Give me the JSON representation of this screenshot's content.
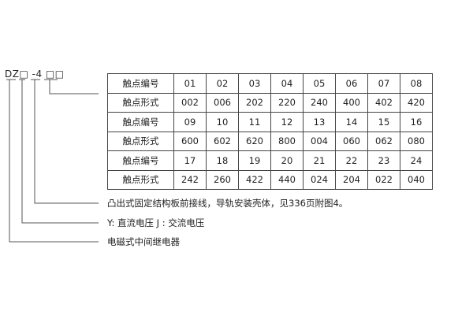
{
  "model_code": "DZ□ -4 □□",
  "table": {
    "rows": [
      {
        "label": "触点编号",
        "values": [
          "01",
          "02",
          "03",
          "04",
          "05",
          "06",
          "07",
          "08"
        ]
      },
      {
        "label": "触点形式",
        "values": [
          "002",
          "006",
          "202",
          "220",
          "240",
          "400",
          "402",
          "420"
        ]
      },
      {
        "label": "触点编号",
        "values": [
          "09",
          "10",
          "11",
          "12",
          "13",
          "14",
          "15",
          "16"
        ]
      },
      {
        "label": "触点形式",
        "values": [
          "600",
          "602",
          "620",
          "800",
          "004",
          "060",
          "062",
          "080"
        ]
      },
      {
        "label": "触点编号",
        "values": [
          "17",
          "18",
          "19",
          "20",
          "21",
          "22",
          "23",
          "24"
        ]
      },
      {
        "label": "触点形式",
        "values": [
          "242",
          "260",
          "422",
          "440",
          "024",
          "204",
          "022",
          "040"
        ]
      }
    ]
  },
  "descriptions": [
    "凸出式固定结构板前接线，导轨安装壳体，见336页附图4。",
    "Y: 直流电压   J : 交流电压",
    "电磁式中间继电器"
  ]
}
